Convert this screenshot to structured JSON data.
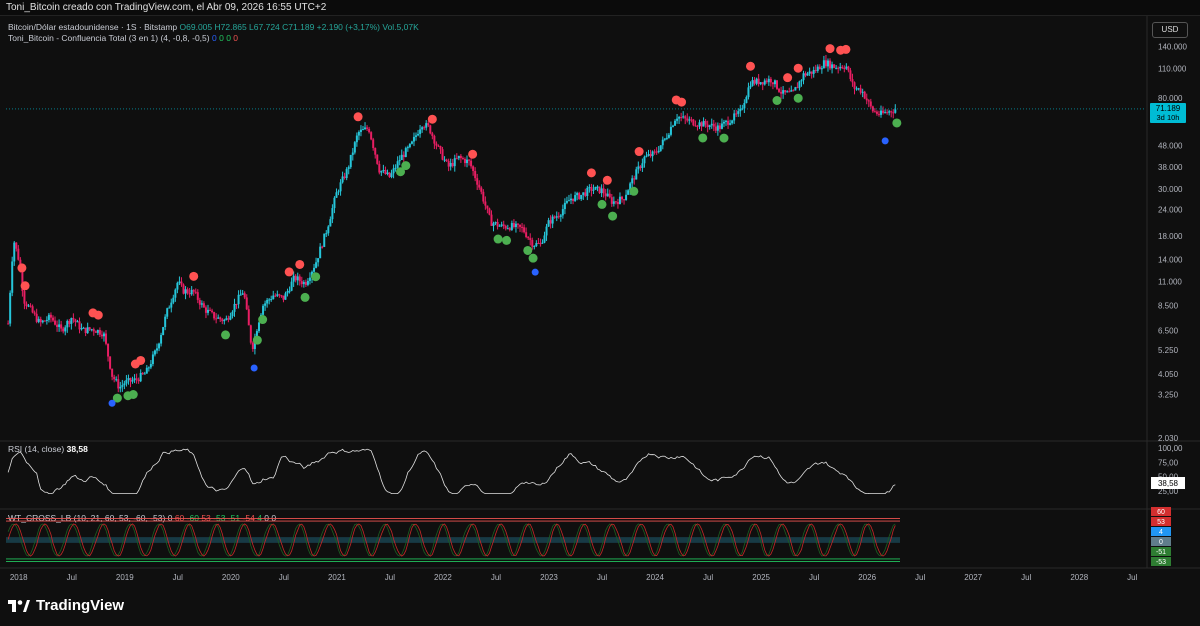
{
  "header": {
    "title": "Toni_Bitcoin creado con TradingView.com, el Abr 09, 2026 16:55 UTC+2"
  },
  "legend": {
    "symbol": "Bitcoin/Dólar estadounidense · 1S · Bitstamp",
    "open": "O69.005",
    "high": "H72.865",
    "low": "L67.724",
    "close": "C71.189",
    "change": "+2.190 (+3,17%)",
    "volume": "Vol.5,07K",
    "indicator": "Toni_Bitcoin - Confluencia Total (3 en 1) (4, -0,8, -0,5)",
    "indicator_values": [
      "0",
      "0",
      "0",
      "0"
    ]
  },
  "currency_button": "USD",
  "price_label": {
    "value": "71.189",
    "countdown": "3d 10h"
  },
  "rsi": {
    "label": "RSI (14, close)",
    "value": "38,58",
    "axis": [
      "100,00",
      "75,00",
      "50,00",
      "25,00"
    ]
  },
  "wt": {
    "label": "WT_CROSS_LB (10, 21, 60, 53, -60, -53)",
    "values": [
      "0",
      "60",
      "-60",
      "53",
      "-53",
      "-51",
      "-54",
      "4",
      "0",
      "0"
    ],
    "axis_badges": [
      "60",
      "53",
      "4",
      "0",
      "-51",
      "-53"
    ]
  },
  "brand": "TradingView",
  "colors": {
    "up": "#26c6da",
    "down": "#e91e63",
    "sell_dot": "#ff5252",
    "buy_dot": "#4caf50",
    "bottom_dot": "#2962ff",
    "price_tag": "#00bcd4"
  },
  "chart_data": {
    "type": "line",
    "title": "Bitcoin/Dólar estadounidense · 1S · Bitstamp",
    "y_scale": "log",
    "y_ticks": [
      "140.000",
      "110.000",
      "80.000",
      "64.000",
      "48.000",
      "38.000",
      "30.000",
      "24.000",
      "18.000",
      "14.000",
      "11.000",
      "8.500",
      "6.500",
      "5.250",
      "4.050",
      "3.250",
      "2.030"
    ],
    "y_tick_values": [
      140000,
      110000,
      80000,
      64000,
      48000,
      38000,
      30000,
      24000,
      18000,
      14000,
      11000,
      8500,
      6500,
      5250,
      4050,
      3250,
      2030
    ],
    "x_ticks": [
      "2018",
      "Jul",
      "2019",
      "Jul",
      "2020",
      "Jul",
      "2021",
      "Jul",
      "2022",
      "Jul",
      "2023",
      "Jul",
      "2024",
      "Jul",
      "2025",
      "Jul",
      "2026",
      "Jul",
      "2027",
      "Jul",
      "2028",
      "Jul"
    ],
    "x_tick_values": [
      2018.0,
      2018.5,
      2019.0,
      2019.5,
      2020.0,
      2020.5,
      2021.0,
      2021.5,
      2022.0,
      2022.5,
      2023.0,
      2023.5,
      2024.0,
      2024.5,
      2025.0,
      2025.5,
      2026.0,
      2026.5,
      2027.0,
      2027.5,
      2028.0,
      2028.5
    ],
    "series": [
      {
        "x": [
          2017.9,
          2017.95,
          2018.0,
          2018.05,
          2018.12,
          2018.2,
          2018.3,
          2018.4,
          2018.5,
          2018.6,
          2018.7,
          2018.8,
          2018.88,
          2018.95,
          2019.0,
          2019.1,
          2019.2,
          2019.3,
          2019.4,
          2019.5,
          2019.55,
          2019.65,
          2019.75,
          2019.85,
          2019.95,
          2020.05,
          2020.12,
          2020.2,
          2020.25,
          2020.3,
          2020.4,
          2020.5,
          2020.6,
          2020.7,
          2020.8,
          2020.9,
          2021.0,
          2021.1,
          2021.2,
          2021.3,
          2021.4,
          2021.5,
          2021.6,
          2021.7,
          2021.8,
          2021.87,
          2021.95,
          2022.05,
          2022.15,
          2022.25,
          2022.35,
          2022.45,
          2022.55,
          2022.65,
          2022.75,
          2022.85,
          2022.92,
          2023.0,
          2023.1,
          2023.2,
          2023.3,
          2023.4,
          2023.5,
          2023.6,
          2023.7,
          2023.8,
          2023.9,
          2024.0,
          2024.1,
          2024.2,
          2024.3,
          2024.4,
          2024.5,
          2024.6,
          2024.7,
          2024.8,
          2024.9,
          2025.0,
          2025.1,
          2025.2,
          2025.3,
          2025.4,
          2025.5,
          2025.6,
          2025.7,
          2025.8,
          2025.87,
          2025.95,
          2026.05,
          2026.12,
          2026.2,
          2026.27
        ],
        "y": [
          7000,
          17500,
          14000,
          9000,
          8000,
          7000,
          7500,
          6500,
          7500,
          6500,
          6600,
          6300,
          4000,
          3500,
          3700,
          3800,
          4100,
          5300,
          8000,
          11000,
          10000,
          9800,
          8200,
          7500,
          7200,
          8800,
          10000,
          5300,
          6800,
          8500,
          9500,
          9200,
          11500,
          10800,
          13500,
          19000,
          29000,
          37000,
          55000,
          58000,
          37000,
          34000,
          42000,
          48000,
          61000,
          58000,
          47000,
          38000,
          42000,
          40000,
          30000,
          21000,
          20000,
          20000,
          19500,
          16500,
          16500,
          21000,
          23000,
          27000,
          28000,
          30000,
          29500,
          26000,
          27000,
          34000,
          42000,
          44000,
          52000,
          66000,
          63000,
          61000,
          60000,
          58000,
          63000,
          68000,
          95000,
          96000,
          98000,
          84000,
          84000,
          103000,
          107000,
          118000,
          112000,
          114000,
          90000,
          87000,
          70000,
          67000,
          69005,
          71189
        ]
      }
    ],
    "signals_sell_dates": [
      2018.03,
      2018.06,
      2018.7,
      2018.75,
      2019.1,
      2019.15,
      2019.65,
      2020.55,
      2020.65,
      2021.2,
      2021.9,
      2022.28,
      2023.4,
      2023.55,
      2023.85,
      2024.2,
      2024.25,
      2024.9,
      2025.25,
      2025.35,
      2025.65,
      2025.75,
      2025.8
    ],
    "signals_buy_dates": [
      2018.93,
      2019.03,
      2019.08,
      2019.95,
      2020.25,
      2020.3,
      2020.7,
      2020.8,
      2021.6,
      2021.65,
      2022.52,
      2022.6,
      2022.8,
      2022.85,
      2023.5,
      2023.6,
      2023.8,
      2024.45,
      2024.65,
      2025.15,
      2025.35,
      2026.28
    ],
    "signals_bottom_dates": [
      2018.88,
      2020.22,
      2022.87,
      2026.17
    ],
    "rsi_range": [
      0,
      100
    ],
    "wt_levels": [
      60,
      53,
      -53,
      -60
    ]
  }
}
